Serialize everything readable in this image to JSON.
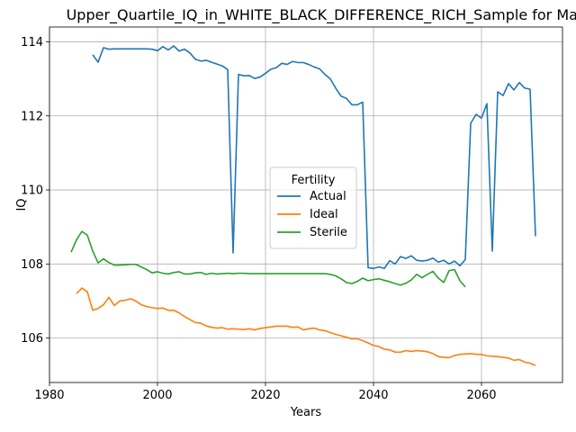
{
  "chart_data": {
    "type": "line",
    "title": "Upper_Quartile_IQ_in_WHITE_BLACK_DIFFERENCE_RICH_Sample for Mal",
    "xlabel": "Years",
    "ylabel": "IQ",
    "xlim": [
      1980,
      2075
    ],
    "ylim": [
      104.8,
      114.4
    ],
    "xticks": [
      1980,
      2000,
      2020,
      2040,
      2060
    ],
    "yticks": [
      106,
      108,
      110,
      112,
      114
    ],
    "grid": true,
    "legend": {
      "title": "Fertility",
      "position": "center"
    },
    "series": [
      {
        "name": "Actual",
        "color": "#1f77b4",
        "x": [
          1988,
          1989,
          1990,
          1991,
          1992,
          1993,
          1994,
          1995,
          1996,
          1997,
          1998,
          1999,
          2000,
          2001,
          2002,
          2003,
          2004,
          2005,
          2006,
          2007,
          2008,
          2009,
          2010,
          2011,
          2012,
          2013,
          2014,
          2015,
          2016,
          2017,
          2018,
          2019,
          2020,
          2021,
          2022,
          2023,
          2024,
          2025,
          2026,
          2027,
          2028,
          2029,
          2030,
          2031,
          2032,
          2033,
          2034,
          2035,
          2036,
          2037,
          2038,
          2039,
          2040,
          2041,
          2042,
          2043,
          2044,
          2045,
          2046,
          2047,
          2048,
          2049,
          2050,
          2051,
          2052,
          2053,
          2054,
          2055,
          2056,
          2057,
          2058,
          2059,
          2060,
          2061,
          2062,
          2063,
          2064,
          2065,
          2066,
          2067,
          2068,
          2069,
          2070
        ],
        "y": [
          113.65,
          113.45,
          113.84,
          113.8,
          113.81,
          113.81,
          113.81,
          113.81,
          113.81,
          113.81,
          113.81,
          113.8,
          113.76,
          113.87,
          113.78,
          113.89,
          113.75,
          113.8,
          113.7,
          113.53,
          113.48,
          113.5,
          113.45,
          113.4,
          113.35,
          113.25,
          108.3,
          113.12,
          113.08,
          113.09,
          113.01,
          113.05,
          113.15,
          113.26,
          113.3,
          113.42,
          113.39,
          113.47,
          113.44,
          113.44,
          113.39,
          113.32,
          113.27,
          113.12,
          113.0,
          112.75,
          112.53,
          112.47,
          112.3,
          112.3,
          112.37,
          107.9,
          107.88,
          107.92,
          107.88,
          108.09,
          108.0,
          108.2,
          108.15,
          108.22,
          108.1,
          108.08,
          108.1,
          108.16,
          108.05,
          108.1,
          108.0,
          108.08,
          107.95,
          108.12,
          111.8,
          112.04,
          111.94,
          112.33,
          108.35,
          112.65,
          112.55,
          112.87,
          112.7,
          112.9,
          112.75,
          112.72,
          108.75
        ]
      },
      {
        "name": "Ideal",
        "color": "#ff7f0e",
        "x": [
          1985,
          1986,
          1987,
          1988,
          1989,
          1990,
          1991,
          1992,
          1993,
          1994,
          1995,
          1996,
          1997,
          1998,
          1999,
          2000,
          2001,
          2002,
          2003,
          2004,
          2005,
          2006,
          2007,
          2008,
          2009,
          2010,
          2011,
          2012,
          2013,
          2014,
          2015,
          2016,
          2017,
          2018,
          2019,
          2020,
          2021,
          2022,
          2023,
          2024,
          2025,
          2026,
          2027,
          2028,
          2029,
          2030,
          2031,
          2032,
          2033,
          2034,
          2035,
          2036,
          2037,
          2038,
          2039,
          2040,
          2041,
          2042,
          2043,
          2044,
          2045,
          2046,
          2047,
          2048,
          2049,
          2050,
          2051,
          2052,
          2053,
          2054,
          2055,
          2056,
          2057,
          2058,
          2059,
          2060,
          2061,
          2062,
          2063,
          2064,
          2065,
          2066,
          2067,
          2068,
          2069,
          2070
        ],
        "y": [
          107.2,
          107.35,
          107.25,
          106.75,
          106.8,
          106.9,
          107.1,
          106.88,
          107.0,
          107.02,
          107.06,
          107.0,
          106.9,
          106.85,
          106.82,
          106.8,
          106.81,
          106.75,
          106.75,
          106.68,
          106.58,
          106.5,
          106.42,
          106.4,
          106.33,
          106.29,
          106.27,
          106.28,
          106.24,
          106.25,
          106.24,
          106.23,
          106.25,
          106.22,
          106.26,
          106.28,
          106.3,
          106.32,
          106.32,
          106.32,
          106.29,
          106.3,
          106.22,
          106.25,
          106.27,
          106.22,
          106.2,
          106.15,
          106.1,
          106.06,
          106.02,
          105.98,
          105.98,
          105.93,
          105.87,
          105.8,
          105.77,
          105.7,
          105.68,
          105.62,
          105.62,
          105.66,
          105.64,
          105.66,
          105.65,
          105.63,
          105.58,
          105.5,
          105.48,
          105.47,
          105.53,
          105.56,
          105.57,
          105.58,
          105.56,
          105.56,
          105.52,
          105.51,
          105.5,
          105.48,
          105.46,
          105.4,
          105.42,
          105.35,
          105.32,
          105.26
        ]
      },
      {
        "name": "Sterile",
        "color": "#2ca02c",
        "x": [
          1984,
          1985,
          1986,
          1987,
          1988,
          1989,
          1990,
          1991,
          1992,
          1993,
          1994,
          1995,
          1996,
          1997,
          1998,
          1999,
          2000,
          2001,
          2002,
          2003,
          2004,
          2005,
          2006,
          2007,
          2008,
          2009,
          2010,
          2011,
          2012,
          2013,
          2014,
          2015,
          2016,
          2017,
          2018,
          2019,
          2020,
          2021,
          2022,
          2023,
          2024,
          2025,
          2026,
          2027,
          2028,
          2029,
          2030,
          2031,
          2032,
          2033,
          2034,
          2035,
          2036,
          2037,
          2038,
          2039,
          2040,
          2041,
          2042,
          2043,
          2044,
          2045,
          2046,
          2047,
          2048,
          2049,
          2050,
          2051,
          2052,
          2053,
          2054,
          2055,
          2056,
          2057
        ],
        "y": [
          108.32,
          108.65,
          108.88,
          108.78,
          108.35,
          108.03,
          108.14,
          108.04,
          107.97,
          107.97,
          107.98,
          107.99,
          107.99,
          107.92,
          107.85,
          107.76,
          107.79,
          107.75,
          107.73,
          107.77,
          107.79,
          107.73,
          107.73,
          107.76,
          107.77,
          107.72,
          107.75,
          107.73,
          107.74,
          107.75,
          107.74,
          107.75,
          107.75,
          107.74,
          107.74,
          107.74,
          107.74,
          107.74,
          107.74,
          107.74,
          107.74,
          107.74,
          107.74,
          107.74,
          107.74,
          107.74,
          107.74,
          107.74,
          107.72,
          107.68,
          107.6,
          107.5,
          107.47,
          107.53,
          107.62,
          107.55,
          107.58,
          107.6,
          107.56,
          107.52,
          107.47,
          107.43,
          107.48,
          107.57,
          107.72,
          107.63,
          107.72,
          107.8,
          107.62,
          107.5,
          107.82,
          107.85,
          107.55,
          107.38
        ]
      }
    ]
  }
}
